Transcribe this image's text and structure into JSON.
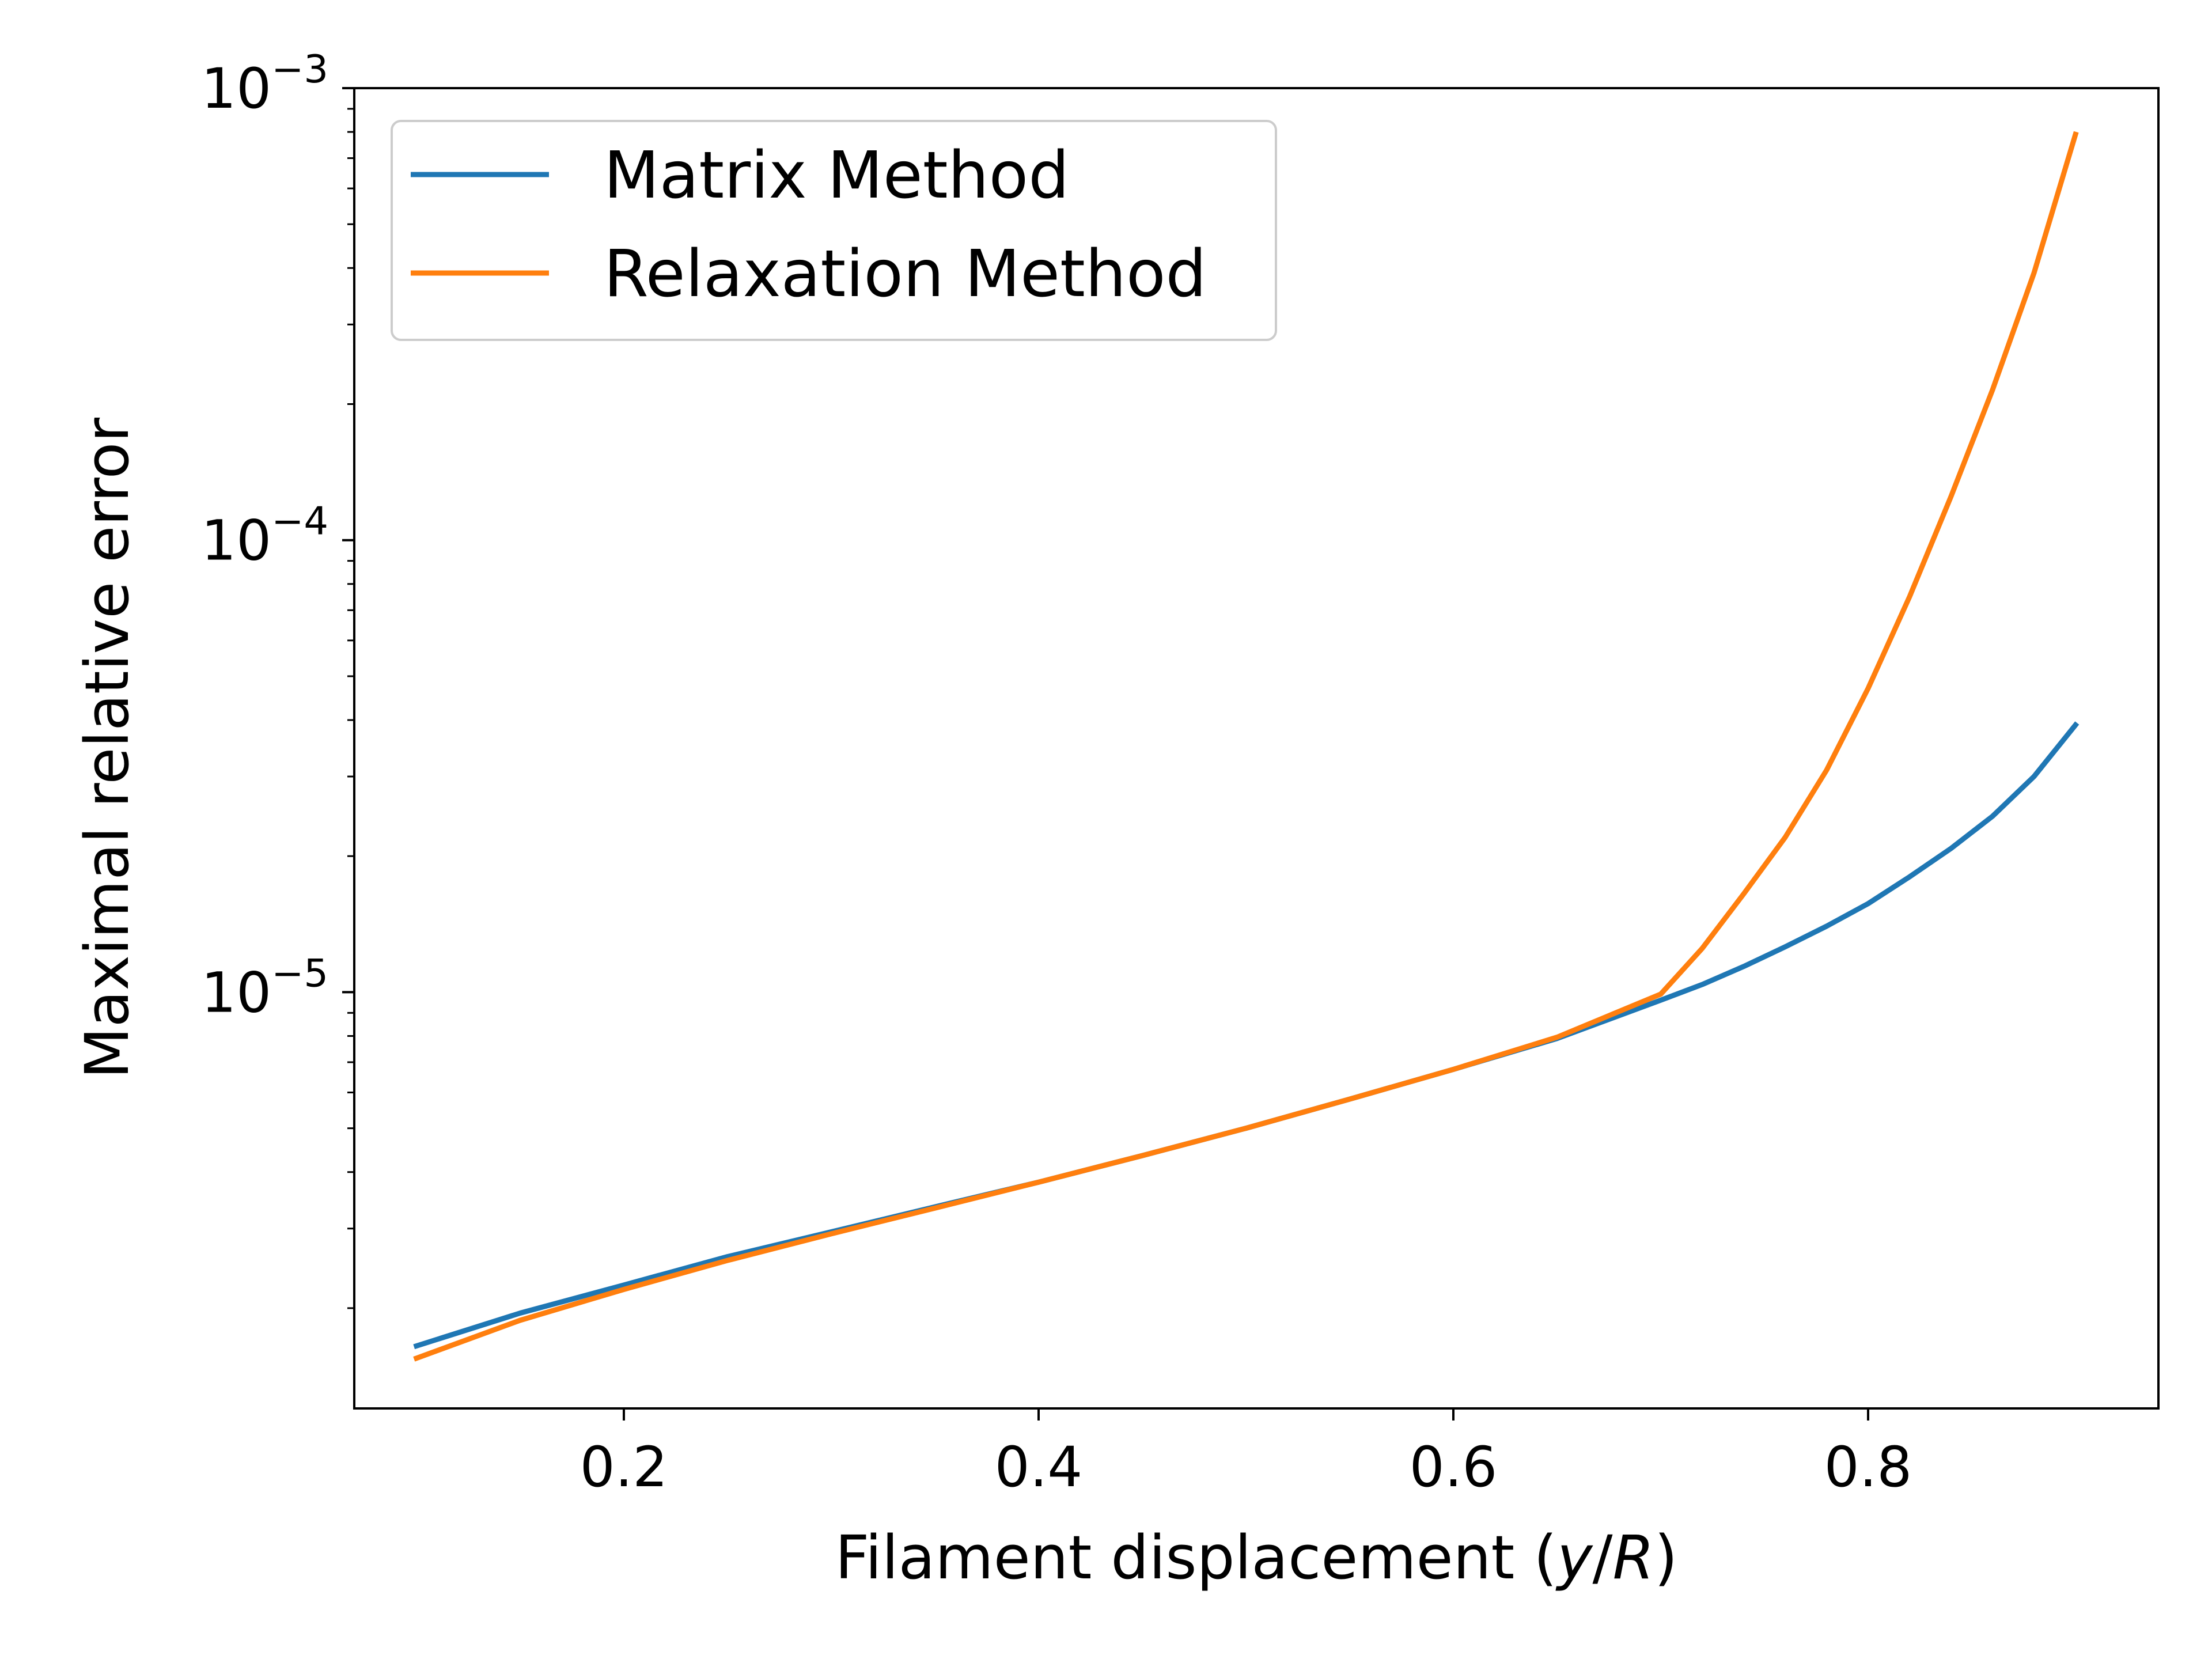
{
  "chart_data": {
    "type": "line",
    "xlabel_parts": [
      "Filament displacement (",
      "y",
      "/",
      "R",
      ")"
    ],
    "ylabel": "Maximal relative error",
    "xlim": [
      0.07,
      0.94
    ],
    "ylim": [
      1.2e-06,
      0.001
    ],
    "y_scale": "log",
    "grid": false,
    "legend": "top-left",
    "x_ticks": [
      {
        "value": 0.2,
        "label": "0.2"
      },
      {
        "value": 0.4,
        "label": "0.4"
      },
      {
        "value": 0.6,
        "label": "0.6"
      },
      {
        "value": 0.8,
        "label": "0.8"
      }
    ],
    "y_ticks": [
      {
        "value": 1e-05,
        "base": "10",
        "exp": "−5"
      },
      {
        "value": 0.0001,
        "base": "10",
        "exp": "−4"
      },
      {
        "value": 0.001,
        "base": "10",
        "exp": "−3"
      }
    ],
    "x": [
      0.1,
      0.15,
      0.2,
      0.25,
      0.3,
      0.35,
      0.4,
      0.45,
      0.5,
      0.55,
      0.6,
      0.65,
      0.7,
      0.72,
      0.74,
      0.76,
      0.78,
      0.8,
      0.82,
      0.84,
      0.86,
      0.88,
      0.9
    ],
    "series": [
      {
        "name": "Matrix Method",
        "color": "#1f77b4",
        "values": [
          1.65e-06,
          1.95e-06,
          2.25e-06,
          2.6e-06,
          2.95e-06,
          3.35e-06,
          3.8e-06,
          4.35e-06,
          5e-06,
          5.8e-06,
          6.75e-06,
          7.9e-06,
          9.6e-06,
          1.04e-05,
          1.14e-05,
          1.26e-05,
          1.4e-05,
          1.57e-05,
          1.8e-05,
          2.08e-05,
          2.45e-05,
          3e-05,
          3.9e-05
        ]
      },
      {
        "name": "Relaxation Method",
        "color": "#ff7f0e",
        "values": [
          1.55e-06,
          1.88e-06,
          2.2e-06,
          2.55e-06,
          2.92e-06,
          3.33e-06,
          3.8e-06,
          4.35e-06,
          5e-06,
          5.8e-06,
          6.75e-06,
          7.95e-06,
          9.9e-06,
          1.25e-05,
          1.65e-05,
          2.2e-05,
          3.1e-05,
          4.7e-05,
          7.5e-05,
          0.000125,
          0.000215,
          0.00039,
          0.00079
        ]
      }
    ]
  }
}
